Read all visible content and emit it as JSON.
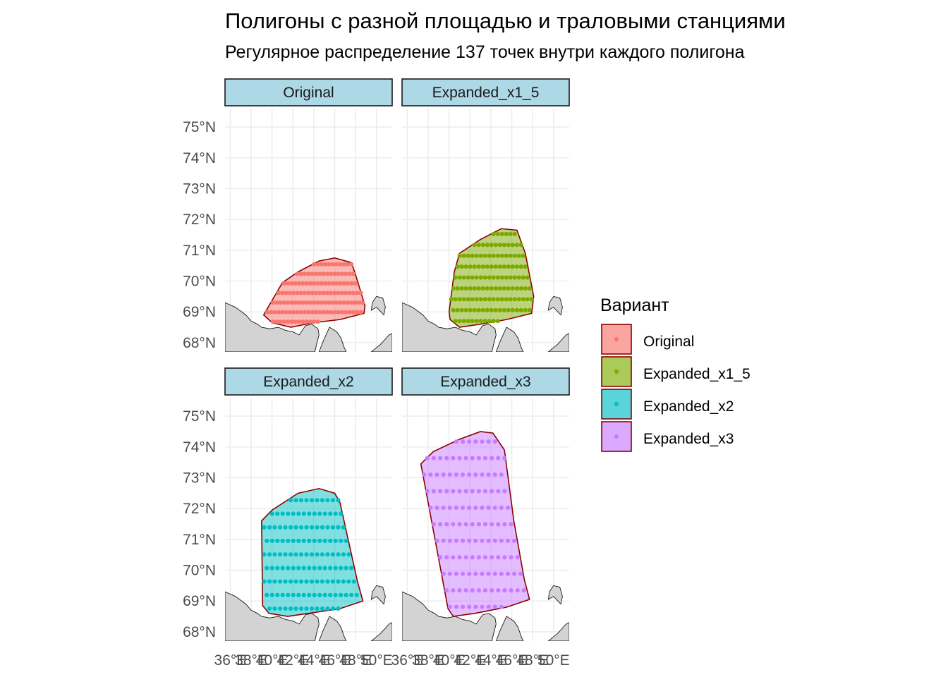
{
  "title": "Полигоны с разной площадью и траловыми станциями",
  "subtitle": "Регулярное распределение 137 точек внутри каждого полигона",
  "colors": {
    "panel_bg": "#ffffff",
    "grid": "#ebebeb",
    "strip_bg": "#add8e6",
    "land": "#d3d3d3",
    "polygon_border": "#8b0000"
  },
  "chart_data": {
    "type": "scatter",
    "facets": [
      "Original",
      "Expanded_x1_5",
      "Expanded_x2",
      "Expanded_x3"
    ],
    "x_ticks": [
      "36°E",
      "38°E",
      "40°E",
      "42°E",
      "44°E",
      "46°E",
      "48°E",
      "50°E"
    ],
    "y_ticks": [
      "68°N",
      "69°N",
      "70°N",
      "71°N",
      "72°N",
      "73°N",
      "74°N",
      "75°N"
    ],
    "xlim": [
      35.5,
      51.5
    ],
    "ylim": [
      67.7,
      75.3
    ],
    "legend": {
      "title": "Вариант",
      "position": "right",
      "entries": [
        {
          "label": "Original",
          "fill": "#f8766d",
          "point": "#f8766d"
        },
        {
          "label": "Expanded_x1_5",
          "fill": "#7cae00",
          "point": "#7cae00"
        },
        {
          "label": "Expanded_x2",
          "fill": "#00bfc4",
          "point": "#00bfc4"
        },
        {
          "label": "Expanded_x3",
          "fill": "#c77cff",
          "point": "#c77cff"
        }
      ]
    },
    "series": [
      {
        "name": "Original",
        "color": "#f8766d",
        "points": 137,
        "polygon": [
          [
            39.2,
            68.9
          ],
          [
            41.0,
            69.95
          ],
          [
            42.5,
            70.3
          ],
          [
            44.5,
            70.65
          ],
          [
            46.0,
            70.75
          ],
          [
            47.6,
            70.6
          ],
          [
            48.0,
            70.2
          ],
          [
            48.9,
            69.2
          ],
          [
            48.8,
            68.95
          ],
          [
            46.5,
            68.75
          ],
          [
            44.0,
            68.65
          ],
          [
            41.8,
            68.5
          ],
          [
            40.0,
            68.65
          ],
          [
            39.2,
            68.9
          ]
        ]
      },
      {
        "name": "Expanded_x1_5",
        "color": "#7caa00",
        "points": 137,
        "polygon": [
          [
            40.0,
            69.0
          ],
          [
            40.5,
            70.3
          ],
          [
            41.0,
            70.9
          ],
          [
            43.0,
            71.35
          ],
          [
            45.0,
            71.7
          ],
          [
            46.5,
            71.65
          ],
          [
            47.3,
            70.9
          ],
          [
            48.1,
            69.5
          ],
          [
            47.9,
            68.95
          ],
          [
            45.5,
            68.75
          ],
          [
            43.0,
            68.6
          ],
          [
            41.0,
            68.5
          ],
          [
            40.1,
            68.75
          ],
          [
            40.0,
            69.0
          ]
        ]
      },
      {
        "name": "Expanded_x2",
        "color": "#00bfc4",
        "points": 137,
        "polygon": [
          [
            39.1,
            68.85
          ],
          [
            39.0,
            71.6
          ],
          [
            40.0,
            71.95
          ],
          [
            42.5,
            72.5
          ],
          [
            44.5,
            72.65
          ],
          [
            46.0,
            72.5
          ],
          [
            46.5,
            72.2
          ],
          [
            48.2,
            69.6
          ],
          [
            48.7,
            69.0
          ],
          [
            46.5,
            68.75
          ],
          [
            43.5,
            68.6
          ],
          [
            41.5,
            68.5
          ],
          [
            39.7,
            68.6
          ],
          [
            39.1,
            68.85
          ]
        ]
      },
      {
        "name": "Expanded_x3",
        "color": "#c77cff",
        "points": 137,
        "polygon": [
          [
            37.3,
            73.45
          ],
          [
            38.5,
            73.85
          ],
          [
            41.0,
            74.25
          ],
          [
            43.0,
            74.5
          ],
          [
            44.2,
            74.45
          ],
          [
            45.3,
            73.9
          ],
          [
            46.2,
            71.6
          ],
          [
            47.2,
            69.7
          ],
          [
            47.7,
            69.05
          ],
          [
            45.5,
            68.8
          ],
          [
            42.5,
            68.6
          ],
          [
            40.4,
            68.5
          ],
          [
            39.9,
            68.75
          ],
          [
            37.3,
            73.45
          ]
        ]
      }
    ]
  }
}
